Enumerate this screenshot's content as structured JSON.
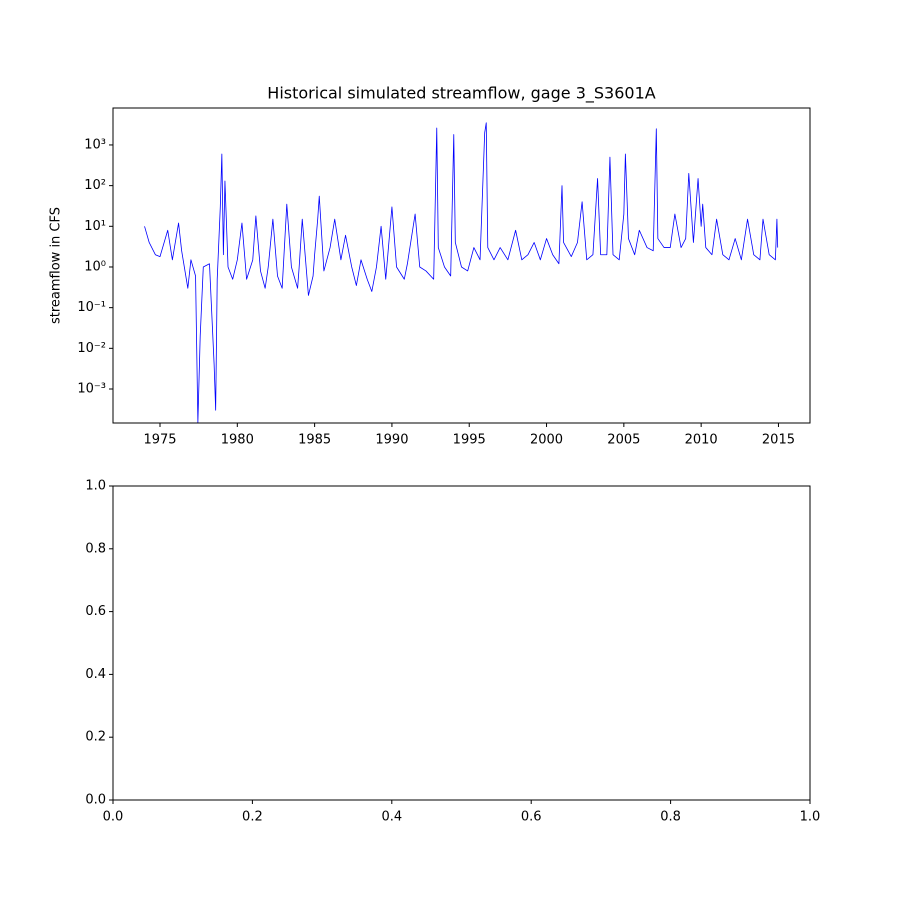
{
  "chart_data": [
    {
      "type": "line",
      "title": "Historical simulated streamflow, gage 3_S3601A",
      "ylabel": "streamflow in CFS",
      "yscale": "log",
      "xlim": [
        1971.96,
        2017.04
      ],
      "ylim": [
        0.000146,
        8100
      ],
      "xticks": [
        1975,
        1980,
        1985,
        1990,
        1995,
        2000,
        2005,
        2010,
        2015
      ],
      "yticks": [
        {
          "value": 0.001,
          "label": "10⁻³"
        },
        {
          "value": 0.01,
          "label": "10⁻²"
        },
        {
          "value": 0.1,
          "label": "10⁻¹"
        },
        {
          "value": 1,
          "label": "10⁰"
        },
        {
          "value": 10,
          "label": "10¹"
        },
        {
          "value": 100,
          "label": "10²"
        },
        {
          "value": 1000,
          "label": "10³"
        }
      ],
      "series": [
        {
          "color": "#0000ff",
          "x": [
            1974.0,
            1974.3,
            1974.7,
            1975.0,
            1975.5,
            1975.8,
            1976.2,
            1976.4,
            1976.8,
            1977.0,
            1977.3,
            1977.45,
            1977.6,
            1977.8,
            1978.2,
            1978.5,
            1978.6,
            1978.7,
            1978.9,
            1979.0,
            1979.1,
            1979.2,
            1979.4,
            1979.7,
            1980.0,
            1980.3,
            1980.6,
            1981.0,
            1981.2,
            1981.5,
            1981.8,
            1982.0,
            1982.3,
            1982.6,
            1982.9,
            1983.2,
            1983.5,
            1983.9,
            1984.0,
            1984.2,
            1984.6,
            1984.9,
            1985.0,
            1985.2,
            1985.3,
            1985.6,
            1986.0,
            1986.3,
            1986.7,
            1987.0,
            1987.4,
            1987.7,
            1988.0,
            1988.4,
            1988.7,
            1989.0,
            1989.3,
            1989.6,
            1990.0,
            1990.3,
            1990.8,
            1991.0,
            1991.5,
            1991.8,
            1992.2,
            1992.7,
            1992.9,
            1993.0,
            1993.4,
            1993.8,
            1994.0,
            1994.1,
            1994.5,
            1994.9,
            1995.3,
            1995.7,
            1996.0,
            1996.1,
            1996.2,
            1996.6,
            1997.0,
            1997.5,
            1998.0,
            1998.4,
            1998.8,
            1999.2,
            1999.6,
            2000.0,
            2000.4,
            2000.8,
            2001.0,
            2001.1,
            2001.6,
            2002.0,
            2002.3,
            2002.6,
            2003.0,
            2003.3,
            2003.5,
            2003.9,
            2004.1,
            2004.3,
            2004.7,
            2005.0,
            2005.1,
            2005.3,
            2005.7,
            2006.0,
            2006.5,
            2006.9,
            2007.1,
            2007.2,
            2007.6,
            2008.0,
            2008.3,
            2008.7,
            2009.0,
            2009.2,
            2009.5,
            2009.8,
            2010.0,
            2010.1,
            2010.3,
            2010.7,
            2011.0,
            2011.4,
            2011.8,
            2012.2,
            2012.6,
            2013.0,
            2013.4,
            2013.8,
            2014.0,
            2014.4,
            2014.8,
            2014.9,
            2014.95
          ],
          "values": [
            10,
            4,
            2,
            1.8,
            8,
            1.5,
            12,
            2.5,
            0.3,
            1.5,
            0.6,
            0.00015,
            0.02,
            1,
            1.2,
            0.004,
            0.0003,
            0.5,
            30,
            600,
            2,
            130,
            1,
            0.5,
            1.5,
            12,
            0.5,
            1.5,
            18,
            0.8,
            0.3,
            1,
            15,
            0.6,
            0.3,
            35,
            1,
            0.3,
            1,
            15,
            0.2,
            0.6,
            2,
            15,
            55,
            0.8,
            3,
            15,
            1.5,
            6,
            1,
            0.35,
            1.5,
            0.5,
            0.25,
            1,
            10,
            0.5,
            30,
            1,
            0.5,
            1.2,
            20,
            1,
            0.8,
            0.5,
            2600,
            3,
            1,
            0.6,
            1800,
            4,
            1,
            0.8,
            3,
            1.5,
            2000,
            3500,
            3,
            1.5,
            3,
            1.5,
            8,
            1.5,
            2,
            4,
            1.5,
            5,
            2,
            1.2,
            100,
            4,
            1.8,
            4,
            40,
            1.5,
            2,
            150,
            2,
            2,
            500,
            2,
            1.5,
            20,
            600,
            5,
            2,
            8,
            3,
            2.5,
            2500,
            5,
            3,
            3,
            20,
            3,
            5,
            200,
            4,
            150,
            10,
            35,
            3,
            2,
            15,
            2,
            1.5,
            5,
            1.5,
            15,
            2,
            1.5,
            15,
            2,
            1.5,
            15,
            3
          ]
        }
      ]
    },
    {
      "type": "line",
      "xlim": [
        0,
        1
      ],
      "ylim": [
        0,
        1
      ],
      "xticks": [
        {
          "value": 0,
          "label": "0.0"
        },
        {
          "value": 0.2,
          "label": "0.2"
        },
        {
          "value": 0.4,
          "label": "0.4"
        },
        {
          "value": 0.6,
          "label": "0.6"
        },
        {
          "value": 0.8,
          "label": "0.8"
        },
        {
          "value": 1,
          "label": "1.0"
        }
      ],
      "yticks": [
        {
          "value": 0,
          "label": "0.0"
        },
        {
          "value": 0.2,
          "label": "0.2"
        },
        {
          "value": 0.4,
          "label": "0.4"
        },
        {
          "value": 0.6,
          "label": "0.6"
        },
        {
          "value": 0.8,
          "label": "0.8"
        },
        {
          "value": 1,
          "label": "1.0"
        }
      ]
    }
  ]
}
